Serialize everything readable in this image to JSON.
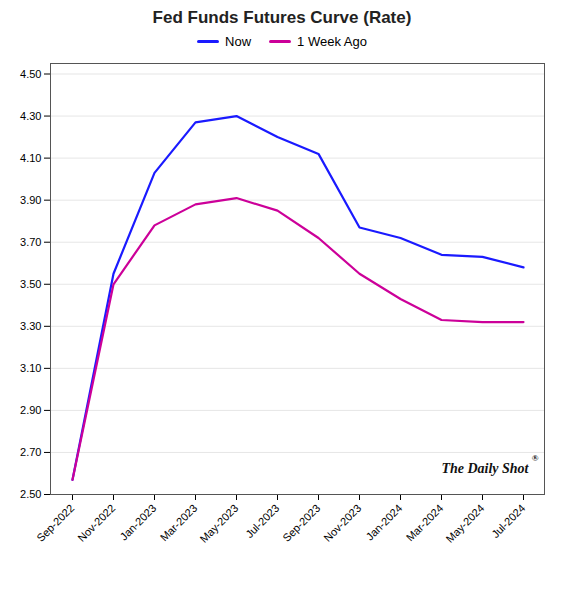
{
  "chart_data": {
    "type": "line",
    "title": "Fed Funds Futures Curve (Rate)",
    "categories": [
      "Sep-2022",
      "Nov-2022",
      "Jan-2023",
      "Mar-2023",
      "May-2023",
      "Jul-2023",
      "Sep-2023",
      "Nov-2023",
      "Jan-2024",
      "Mar-2024",
      "May-2024",
      "Jul-2024"
    ],
    "series": [
      {
        "name": "Now",
        "color": "#1a1aff",
        "values": [
          2.57,
          3.55,
          4.03,
          4.27,
          4.3,
          4.2,
          4.12,
          3.77,
          3.72,
          3.64,
          3.63,
          3.58
        ]
      },
      {
        "name": "1 Week Ago",
        "color": "#cc0099",
        "values": [
          2.57,
          3.5,
          3.78,
          3.88,
          3.91,
          3.85,
          3.72,
          3.55,
          3.43,
          3.33,
          3.32,
          3.32
        ]
      }
    ],
    "ylim": [
      2.5,
      4.55
    ],
    "yticks": [
      {
        "value": 2.5,
        "label": "2.50"
      },
      {
        "value": 2.7,
        "label": "2.70"
      },
      {
        "value": 2.9,
        "label": "2.90"
      },
      {
        "value": 3.1,
        "label": "3.10"
      },
      {
        "value": 3.3,
        "label": "3.30"
      },
      {
        "value": 3.5,
        "label": "3.50"
      },
      {
        "value": 3.7,
        "label": "3.70"
      },
      {
        "value": 3.9,
        "label": "3.90"
      },
      {
        "value": 4.1,
        "label": "4.10"
      },
      {
        "value": 4.3,
        "label": "4.30"
      },
      {
        "value": 4.5,
        "label": "4.50"
      }
    ],
    "grid": true,
    "legend": "top",
    "annotations": [
      "The Daily Shot",
      "®"
    ]
  }
}
